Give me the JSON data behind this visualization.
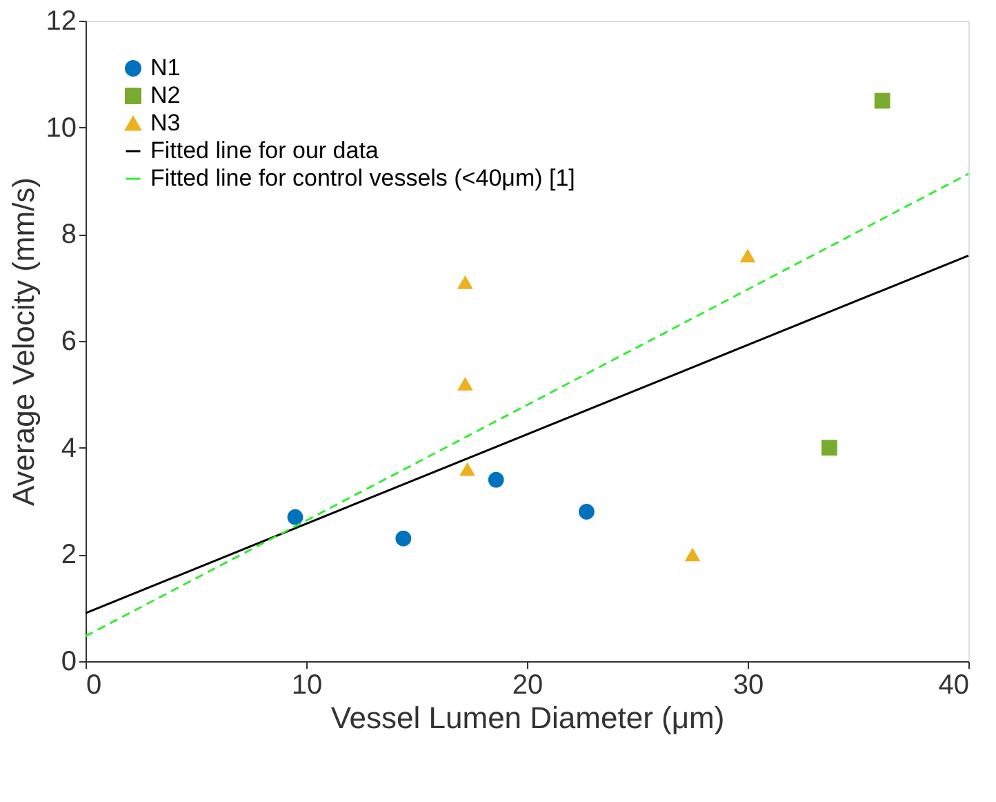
{
  "chart_data": {
    "type": "scatter",
    "xlabel": "Vessel Lumen Diameter (μm)",
    "ylabel": "Average Velocity (mm/s)",
    "xlim": [
      0,
      40
    ],
    "xticks": [
      0,
      10,
      20,
      30,
      40
    ],
    "ylim": [
      0,
      12
    ],
    "yticks": [
      0,
      2,
      4,
      6,
      8,
      10,
      12
    ],
    "grid": false,
    "legend": "top left",
    "series": [
      {
        "name": "N1",
        "marker": "circle",
        "color": "#0072bd",
        "x": [
          9.5,
          14.4,
          18.6,
          22.7
        ],
        "values": [
          2.7,
          2.3,
          3.4,
          2.8
        ]
      },
      {
        "name": "N2",
        "marker": "square",
        "color": "#77ac30",
        "x": [
          36.1,
          33.7
        ],
        "values": [
          10.5,
          4.0
        ]
      },
      {
        "name": "N3",
        "marker": "triangle",
        "color": "#edb120",
        "x": [
          17.2,
          17.2,
          17.3,
          27.5,
          30.0
        ],
        "values": [
          7.1,
          5.2,
          3.6,
          2.0,
          7.6
        ]
      },
      {
        "name": "Fitted line for our data",
        "type": "line",
        "line_style": "solid",
        "color": "#000000",
        "x": [
          0,
          40
        ],
        "values": [
          0.9,
          7.6
        ]
      },
      {
        "name": "Fitted line for control vessels (<40μm) [1]",
        "type": "line",
        "line_style": "dashed",
        "color": "#33ee33",
        "x": [
          0,
          40
        ],
        "values": [
          0.47,
          9.13
        ]
      }
    ]
  }
}
